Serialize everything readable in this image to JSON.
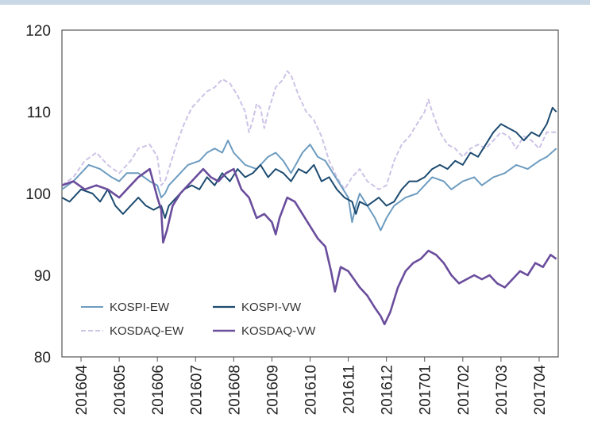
{
  "chart_data": {
    "type": "line",
    "title": "",
    "xlabel": "",
    "ylabel": "",
    "ylim": [
      80,
      120
    ],
    "yticks": [
      80,
      90,
      100,
      110,
      120
    ],
    "x_ticks": [
      "201604",
      "201605",
      "201606",
      "201607",
      "201608",
      "201609",
      "201610",
      "201611",
      "201612",
      "201701",
      "201702",
      "201703",
      "201704"
    ],
    "grid": false,
    "legend": "bottom-left, inside plot",
    "series": [
      {
        "name": "KOSPI-EW",
        "color": "#6d9cc0",
        "style": "solid",
        "points": [
          [
            0,
            100.5
          ],
          [
            0.3,
            101.5
          ],
          [
            0.5,
            102.5
          ],
          [
            0.7,
            103.5
          ],
          [
            1.0,
            103.0
          ],
          [
            1.3,
            102.0
          ],
          [
            1.5,
            101.5
          ],
          [
            1.7,
            102.5
          ],
          [
            2.0,
            102.5
          ],
          [
            2.3,
            101.5
          ],
          [
            2.5,
            101.0
          ],
          [
            2.6,
            99.5
          ],
          [
            2.7,
            100.0
          ],
          [
            2.8,
            101.0
          ],
          [
            3.0,
            102.0
          ],
          [
            3.3,
            103.5
          ],
          [
            3.6,
            104.0
          ],
          [
            3.8,
            105.0
          ],
          [
            4.0,
            105.5
          ],
          [
            4.2,
            105.0
          ],
          [
            4.35,
            106.5
          ],
          [
            4.5,
            105.0
          ],
          [
            4.8,
            103.5
          ],
          [
            5.1,
            103.0
          ],
          [
            5.4,
            104.5
          ],
          [
            5.6,
            105.0
          ],
          [
            5.8,
            104.0
          ],
          [
            6.0,
            102.5
          ],
          [
            6.3,
            105.0
          ],
          [
            6.5,
            106.0
          ],
          [
            6.7,
            104.5
          ],
          [
            6.9,
            104.0
          ],
          [
            7.1,
            102.5
          ],
          [
            7.3,
            101.0
          ],
          [
            7.5,
            99.5
          ],
          [
            7.6,
            96.5
          ],
          [
            7.7,
            98.5
          ],
          [
            7.8,
            100.0
          ],
          [
            8.0,
            98.5
          ],
          [
            8.2,
            97.0
          ],
          [
            8.35,
            95.5
          ],
          [
            8.5,
            97.0
          ],
          [
            8.7,
            98.5
          ],
          [
            9.0,
            99.5
          ],
          [
            9.3,
            100.0
          ],
          [
            9.5,
            101.0
          ],
          [
            9.7,
            102.0
          ],
          [
            10.0,
            101.5
          ],
          [
            10.2,
            100.5
          ],
          [
            10.5,
            101.5
          ],
          [
            10.8,
            102.0
          ],
          [
            11.0,
            101.0
          ],
          [
            11.3,
            102.0
          ],
          [
            11.6,
            102.5
          ],
          [
            11.9,
            103.5
          ],
          [
            12.2,
            103.0
          ],
          [
            12.5,
            104.0
          ],
          [
            12.7,
            104.5
          ],
          [
            12.95,
            105.5
          ]
        ]
      },
      {
        "name": "KOSPI-VW",
        "color": "#1d4b70",
        "style": "solid",
        "points": [
          [
            0,
            99.5
          ],
          [
            0.2,
            99.0
          ],
          [
            0.5,
            100.5
          ],
          [
            0.8,
            100.0
          ],
          [
            1.0,
            99.0
          ],
          [
            1.2,
            100.5
          ],
          [
            1.4,
            98.5
          ],
          [
            1.6,
            97.5
          ],
          [
            1.8,
            98.5
          ],
          [
            2.0,
            99.5
          ],
          [
            2.2,
            98.5
          ],
          [
            2.4,
            98.0
          ],
          [
            2.6,
            98.5
          ],
          [
            2.7,
            97.0
          ],
          [
            2.8,
            98.5
          ],
          [
            3.0,
            99.5
          ],
          [
            3.2,
            100.5
          ],
          [
            3.4,
            101.0
          ],
          [
            3.6,
            100.5
          ],
          [
            3.8,
            102.0
          ],
          [
            4.0,
            101.0
          ],
          [
            4.2,
            102.5
          ],
          [
            4.4,
            101.5
          ],
          [
            4.6,
            103.0
          ],
          [
            4.8,
            102.0
          ],
          [
            5.0,
            102.5
          ],
          [
            5.2,
            103.5
          ],
          [
            5.4,
            102.0
          ],
          [
            5.6,
            103.0
          ],
          [
            5.8,
            102.5
          ],
          [
            6.0,
            101.5
          ],
          [
            6.2,
            103.0
          ],
          [
            6.4,
            102.5
          ],
          [
            6.6,
            103.5
          ],
          [
            6.8,
            101.5
          ],
          [
            7.0,
            102.0
          ],
          [
            7.2,
            100.5
          ],
          [
            7.4,
            99.5
          ],
          [
            7.6,
            99.0
          ],
          [
            7.7,
            97.5
          ],
          [
            7.8,
            99.0
          ],
          [
            8.0,
            98.5
          ],
          [
            8.3,
            99.5
          ],
          [
            8.5,
            98.5
          ],
          [
            8.7,
            99.0
          ],
          [
            8.9,
            100.5
          ],
          [
            9.1,
            101.5
          ],
          [
            9.3,
            101.5
          ],
          [
            9.5,
            102.0
          ],
          [
            9.7,
            103.0
          ],
          [
            9.9,
            103.5
          ],
          [
            10.1,
            103.0
          ],
          [
            10.3,
            104.0
          ],
          [
            10.5,
            103.5
          ],
          [
            10.7,
            105.0
          ],
          [
            10.9,
            104.5
          ],
          [
            11.1,
            106.0
          ],
          [
            11.3,
            107.5
          ],
          [
            11.5,
            108.5
          ],
          [
            11.7,
            108.0
          ],
          [
            11.9,
            107.5
          ],
          [
            12.1,
            106.5
          ],
          [
            12.3,
            107.5
          ],
          [
            12.5,
            107.0
          ],
          [
            12.7,
            108.5
          ],
          [
            12.85,
            110.5
          ],
          [
            12.95,
            110.0
          ]
        ]
      },
      {
        "name": "KOSDAQ-EW",
        "color": "#cdc3e6",
        "style": "dashed",
        "points": [
          [
            0,
            101.0
          ],
          [
            0.3,
            102.0
          ],
          [
            0.6,
            104.0
          ],
          [
            0.9,
            105.0
          ],
          [
            1.2,
            103.5
          ],
          [
            1.5,
            102.5
          ],
          [
            1.8,
            104.0
          ],
          [
            2.0,
            105.5
          ],
          [
            2.3,
            106.0
          ],
          [
            2.5,
            104.5
          ],
          [
            2.6,
            101.0
          ],
          [
            2.7,
            101.5
          ],
          [
            2.8,
            103.0
          ],
          [
            3.0,
            106.0
          ],
          [
            3.2,
            108.5
          ],
          [
            3.4,
            110.5
          ],
          [
            3.6,
            111.5
          ],
          [
            3.8,
            112.5
          ],
          [
            4.0,
            113.0
          ],
          [
            4.2,
            114.0
          ],
          [
            4.4,
            113.5
          ],
          [
            4.6,
            112.0
          ],
          [
            4.8,
            110.0
          ],
          [
            4.9,
            107.5
          ],
          [
            5.0,
            109.0
          ],
          [
            5.1,
            111.0
          ],
          [
            5.2,
            110.5
          ],
          [
            5.3,
            108.0
          ],
          [
            5.4,
            110.0
          ],
          [
            5.6,
            113.0
          ],
          [
            5.8,
            114.0
          ],
          [
            5.9,
            115.0
          ],
          [
            6.0,
            114.5
          ],
          [
            6.2,
            112.0
          ],
          [
            6.4,
            110.0
          ],
          [
            6.6,
            109.0
          ],
          [
            6.8,
            107.0
          ],
          [
            7.0,
            104.0
          ],
          [
            7.2,
            102.0
          ],
          [
            7.4,
            100.5
          ],
          [
            7.6,
            102.0
          ],
          [
            7.8,
            103.0
          ],
          [
            8.0,
            101.5
          ],
          [
            8.3,
            100.5
          ],
          [
            8.5,
            101.0
          ],
          [
            8.7,
            104.0
          ],
          [
            8.9,
            106.0
          ],
          [
            9.1,
            107.0
          ],
          [
            9.3,
            108.5
          ],
          [
            9.5,
            110.0
          ],
          [
            9.6,
            111.5
          ],
          [
            9.7,
            110.0
          ],
          [
            9.9,
            107.5
          ],
          [
            10.1,
            106.0
          ],
          [
            10.3,
            105.5
          ],
          [
            10.5,
            104.5
          ],
          [
            10.7,
            105.5
          ],
          [
            10.9,
            106.0
          ],
          [
            11.1,
            105.5
          ],
          [
            11.3,
            106.5
          ],
          [
            11.5,
            107.5
          ],
          [
            11.7,
            107.0
          ],
          [
            11.9,
            105.5
          ],
          [
            12.1,
            107.0
          ],
          [
            12.3,
            106.5
          ],
          [
            12.5,
            105.5
          ],
          [
            12.7,
            107.5
          ],
          [
            12.95,
            107.5
          ]
        ]
      },
      {
        "name": "KOSDAQ-VW",
        "color": "#6a4d9c",
        "style": "solid",
        "points": [
          [
            0,
            101.0
          ],
          [
            0.3,
            101.5
          ],
          [
            0.6,
            100.5
          ],
          [
            0.9,
            101.0
          ],
          [
            1.2,
            100.5
          ],
          [
            1.5,
            99.5
          ],
          [
            1.8,
            101.0
          ],
          [
            2.0,
            102.0
          ],
          [
            2.3,
            103.0
          ],
          [
            2.5,
            99.5
          ],
          [
            2.6,
            98.0
          ],
          [
            2.65,
            94.0
          ],
          [
            2.75,
            95.5
          ],
          [
            2.9,
            98.5
          ],
          [
            3.1,
            100.0
          ],
          [
            3.3,
            101.0
          ],
          [
            3.5,
            102.0
          ],
          [
            3.7,
            103.0
          ],
          [
            3.9,
            102.0
          ],
          [
            4.1,
            101.5
          ],
          [
            4.3,
            102.5
          ],
          [
            4.5,
            103.0
          ],
          [
            4.7,
            100.5
          ],
          [
            4.9,
            99.5
          ],
          [
            5.1,
            97.0
          ],
          [
            5.3,
            97.5
          ],
          [
            5.5,
            96.5
          ],
          [
            5.6,
            95.0
          ],
          [
            5.7,
            97.0
          ],
          [
            5.9,
            99.5
          ],
          [
            6.1,
            99.0
          ],
          [
            6.3,
            97.5
          ],
          [
            6.5,
            96.0
          ],
          [
            6.7,
            94.5
          ],
          [
            6.9,
            93.5
          ],
          [
            7.05,
            90.5
          ],
          [
            7.15,
            88.0
          ],
          [
            7.3,
            91.0
          ],
          [
            7.5,
            90.5
          ],
          [
            7.65,
            89.5
          ],
          [
            7.8,
            88.5
          ],
          [
            8.0,
            87.5
          ],
          [
            8.2,
            86.0
          ],
          [
            8.35,
            85.0
          ],
          [
            8.45,
            84.0
          ],
          [
            8.6,
            85.5
          ],
          [
            8.8,
            88.5
          ],
          [
            9.0,
            90.5
          ],
          [
            9.2,
            91.5
          ],
          [
            9.4,
            92.0
          ],
          [
            9.6,
            93.0
          ],
          [
            9.8,
            92.5
          ],
          [
            10.0,
            91.5
          ],
          [
            10.2,
            90.0
          ],
          [
            10.4,
            89.0
          ],
          [
            10.6,
            89.5
          ],
          [
            10.8,
            90.0
          ],
          [
            11.0,
            89.5
          ],
          [
            11.2,
            90.0
          ],
          [
            11.4,
            89.0
          ],
          [
            11.6,
            88.5
          ],
          [
            11.8,
            89.5
          ],
          [
            12.0,
            90.5
          ],
          [
            12.2,
            90.0
          ],
          [
            12.4,
            91.5
          ],
          [
            12.6,
            91.0
          ],
          [
            12.8,
            92.5
          ],
          [
            12.95,
            92.0
          ]
        ]
      }
    ]
  },
  "legend": {
    "kospi_ew": "KOSPI-EW",
    "kospi_vw": "KOSPI-VW",
    "kosdaq_ew": "KOSDAQ-EW",
    "kosdaq_vw": "KOSDAQ-VW"
  }
}
